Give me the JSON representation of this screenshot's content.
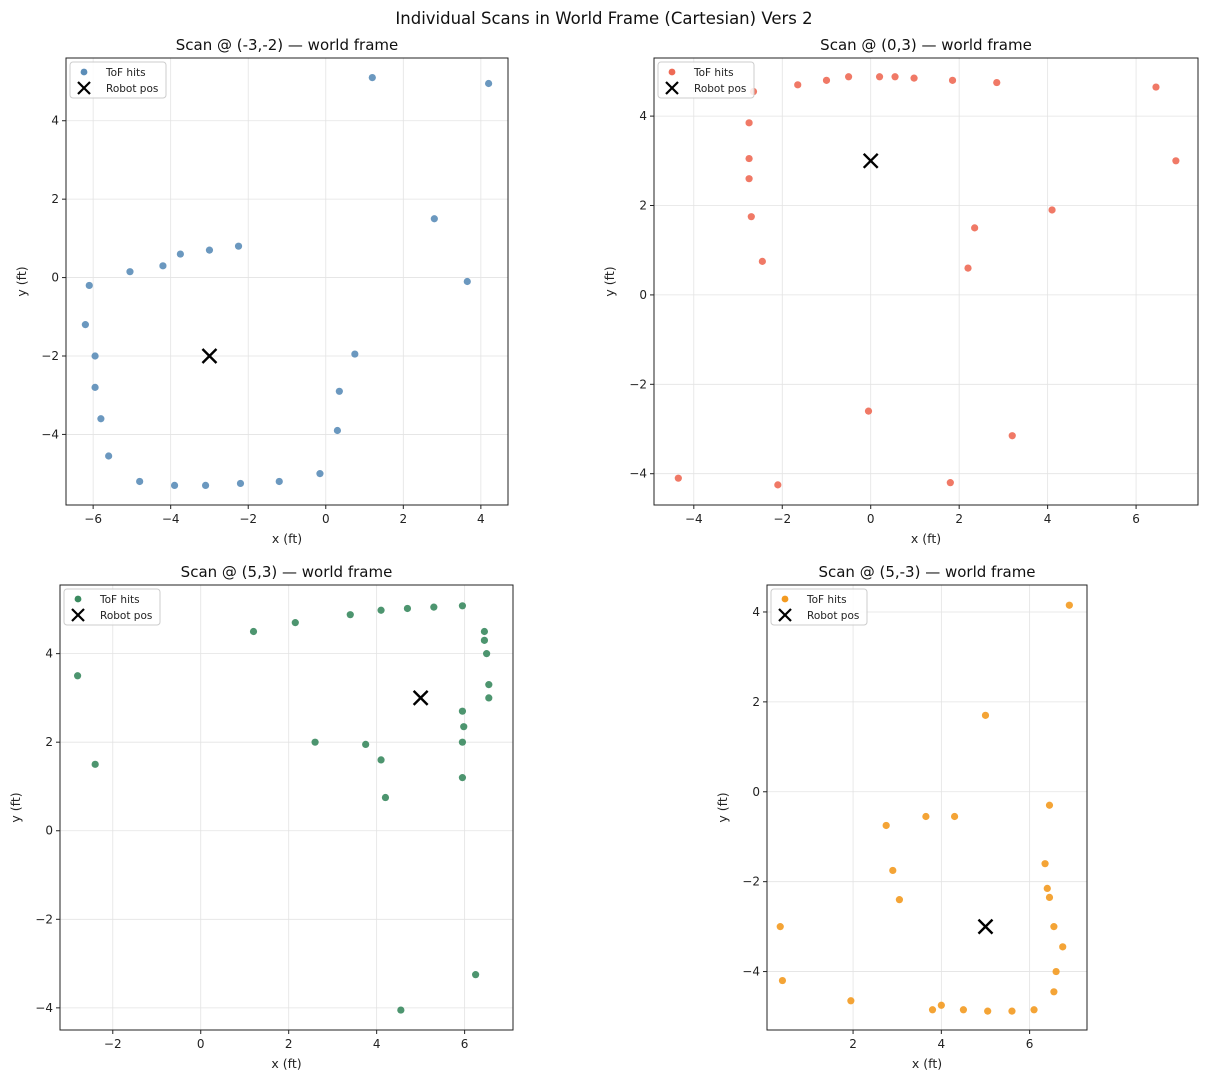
{
  "suptitle": "Individual Scans in World Frame (Cartesian) Vers 2",
  "chart_data": [
    {
      "type": "scatter",
      "title": "Scan @ (-3,-2) — world frame",
      "xlabel": "x (ft)",
      "ylabel": "y (ft)",
      "xlim": [
        -6.7,
        4.7
      ],
      "ylim": [
        -5.8,
        5.6
      ],
      "xticks": [
        -6,
        -4,
        -2,
        0,
        2,
        4
      ],
      "yticks": [
        -4,
        -2,
        0,
        2,
        4
      ],
      "xtick_labels": [
        "−6",
        "−4",
        "−2",
        "0",
        "2",
        "4"
      ],
      "ytick_labels": [
        "−4",
        "−2",
        "0",
        "2",
        "4"
      ],
      "grid": true,
      "legend_position": "upper-left",
      "color": "#5b8db8",
      "series": [
        {
          "name": "ToF hits",
          "marker": "circle",
          "points": [
            [
              1.2,
              5.1
            ],
            [
              4.2,
              4.95
            ],
            [
              2.8,
              1.5
            ],
            [
              3.65,
              -0.1
            ],
            [
              0.75,
              -1.95
            ],
            [
              0.35,
              -2.9
            ],
            [
              0.3,
              -3.9
            ],
            [
              -0.15,
              -5.0
            ],
            [
              -1.2,
              -5.2
            ],
            [
              -2.2,
              -5.25
            ],
            [
              -3.1,
              -5.3
            ],
            [
              -3.9,
              -5.3
            ],
            [
              -4.8,
              -5.2
            ],
            [
              -5.6,
              -4.55
            ],
            [
              -5.8,
              -3.6
            ],
            [
              -5.95,
              -2.8
            ],
            [
              -5.95,
              -2.0
            ],
            [
              -6.2,
              -1.2
            ],
            [
              -6.1,
              -0.2
            ],
            [
              -5.05,
              0.15
            ],
            [
              -4.2,
              0.3
            ],
            [
              -3.75,
              0.6
            ],
            [
              -3.0,
              0.7
            ],
            [
              -2.25,
              0.8
            ]
          ]
        },
        {
          "name": "Robot pos",
          "marker": "x",
          "points": [
            [
              -3,
              -2
            ]
          ]
        }
      ]
    },
    {
      "type": "scatter",
      "title": "Scan @ (0,3) — world frame",
      "xlabel": "x (ft)",
      "ylabel": "y (ft)",
      "xlim": [
        -4.9,
        7.4
      ],
      "ylim": [
        -4.7,
        5.3
      ],
      "xticks": [
        -4,
        -2,
        0,
        2,
        4,
        6
      ],
      "yticks": [
        -4,
        -2,
        0,
        2,
        4
      ],
      "xtick_labels": [
        "−4",
        "−2",
        "0",
        "2",
        "4",
        "6"
      ],
      "ytick_labels": [
        "−4",
        "−2",
        "0",
        "2",
        "4"
      ],
      "grid": true,
      "legend_position": "upper-left",
      "color": "#ee6a55",
      "series": [
        {
          "name": "ToF hits",
          "marker": "circle",
          "points": [
            [
              -2.65,
              4.55
            ],
            [
              -1.65,
              4.7
            ],
            [
              -1.0,
              4.8
            ],
            [
              -0.5,
              4.88
            ],
            [
              0.2,
              4.88
            ],
            [
              0.55,
              4.88
            ],
            [
              0.98,
              4.85
            ],
            [
              1.85,
              4.8
            ],
            [
              2.85,
              4.75
            ],
            [
              6.45,
              4.65
            ],
            [
              6.9,
              3.0
            ],
            [
              -2.75,
              3.85
            ],
            [
              -2.75,
              3.05
            ],
            [
              -2.75,
              2.6
            ],
            [
              -2.7,
              1.75
            ],
            [
              -2.45,
              0.75
            ],
            [
              4.1,
              1.9
            ],
            [
              2.35,
              1.5
            ],
            [
              2.2,
              0.6
            ],
            [
              -0.05,
              -2.6
            ],
            [
              3.2,
              -3.15
            ],
            [
              1.8,
              -4.2
            ],
            [
              -2.1,
              -4.25
            ],
            [
              -4.35,
              -4.1
            ]
          ]
        },
        {
          "name": "Robot pos",
          "marker": "x",
          "points": [
            [
              0,
              3
            ]
          ]
        }
      ]
    },
    {
      "type": "scatter",
      "title": "Scan @ (5,3) — world frame",
      "xlabel": "x (ft)",
      "ylabel": "y (ft)",
      "xlim": [
        -3.2,
        7.1
      ],
      "ylim": [
        -4.5,
        5.55
      ],
      "xticks": [
        -2,
        0,
        2,
        4,
        6
      ],
      "yticks": [
        -4,
        -2,
        0,
        2,
        4
      ],
      "xtick_labels": [
        "−2",
        "0",
        "2",
        "4",
        "6"
      ],
      "ytick_labels": [
        "−4",
        "−2",
        "0",
        "2",
        "4"
      ],
      "grid": true,
      "legend_position": "upper-left",
      "color": "#3a8a5f",
      "series": [
        {
          "name": "ToF hits",
          "marker": "circle",
          "points": [
            [
              -2.8,
              3.5
            ],
            [
              -2.4,
              1.5
            ],
            [
              1.2,
              4.5
            ],
            [
              2.15,
              4.7
            ],
            [
              3.4,
              4.88
            ],
            [
              4.1,
              4.98
            ],
            [
              4.7,
              5.02
            ],
            [
              5.3,
              5.05
            ],
            [
              5.95,
              5.08
            ],
            [
              6.45,
              4.5
            ],
            [
              6.45,
              4.3
            ],
            [
              6.5,
              4.0
            ],
            [
              6.55,
              3.3
            ],
            [
              6.55,
              3.0
            ],
            [
              5.95,
              2.7
            ],
            [
              5.98,
              2.35
            ],
            [
              5.95,
              2.0
            ],
            [
              5.95,
              1.2
            ],
            [
              2.6,
              2.0
            ],
            [
              3.75,
              1.95
            ],
            [
              4.1,
              1.6
            ],
            [
              4.2,
              0.75
            ],
            [
              6.25,
              -3.25
            ],
            [
              4.55,
              -4.05
            ]
          ]
        },
        {
          "name": "Robot pos",
          "marker": "x",
          "points": [
            [
              5,
              3
            ]
          ]
        }
      ]
    },
    {
      "type": "scatter",
      "title": "Scan @ (5,-3) — world frame",
      "xlabel": "x (ft)",
      "ylabel": "y (ft)",
      "xlim": [
        0.05,
        7.3
      ],
      "ylim": [
        -5.3,
        4.6
      ],
      "xticks": [
        2,
        4,
        6
      ],
      "yticks": [
        -4,
        -2,
        0,
        2,
        4
      ],
      "xtick_labels": [
        "2",
        "4",
        "6"
      ],
      "ytick_labels": [
        "−4",
        "−2",
        "0",
        "2",
        "4"
      ],
      "grid": true,
      "legend_position": "upper-left",
      "color": "#f39a20",
      "series": [
        {
          "name": "ToF hits",
          "marker": "circle",
          "points": [
            [
              6.9,
              4.15
            ],
            [
              5.0,
              1.7
            ],
            [
              6.45,
              -0.3
            ],
            [
              2.75,
              -0.75
            ],
            [
              3.65,
              -0.55
            ],
            [
              4.3,
              -0.55
            ],
            [
              2.9,
              -1.75
            ],
            [
              3.05,
              -2.4
            ],
            [
              6.35,
              -1.6
            ],
            [
              6.4,
              -2.15
            ],
            [
              6.45,
              -2.35
            ],
            [
              6.55,
              -3.0
            ],
            [
              6.75,
              -3.45
            ],
            [
              6.6,
              -4.0
            ],
            [
              6.55,
              -4.45
            ],
            [
              0.35,
              -3.0
            ],
            [
              0.4,
              -4.2
            ],
            [
              1.95,
              -4.65
            ],
            [
              3.8,
              -4.85
            ],
            [
              4.0,
              -4.75
            ],
            [
              4.5,
              -4.85
            ],
            [
              5.05,
              -4.88
            ],
            [
              5.6,
              -4.88
            ],
            [
              6.1,
              -4.85
            ]
          ]
        },
        {
          "name": "Robot pos",
          "marker": "x",
          "points": [
            [
              5,
              -3
            ]
          ]
        }
      ]
    }
  ]
}
